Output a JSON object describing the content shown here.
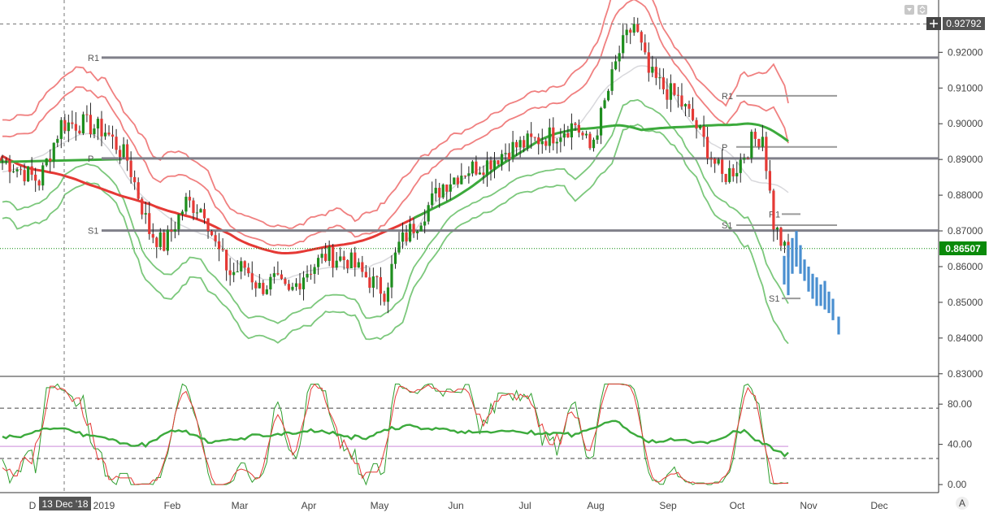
{
  "chart_data": [
    {
      "type": "candlestick",
      "symbol": "",
      "price_axis": {
        "ticks": [
          "0.92000",
          "0.91000",
          "0.90000",
          "0.89000",
          "0.88000",
          "0.87000",
          "0.86000",
          "0.85000",
          "0.84000",
          "0.83000"
        ],
        "range": [
          0.8295,
          0.9335
        ]
      },
      "time_axis": {
        "labels": [
          "D",
          "2019",
          "Feb",
          "Mar",
          "Apr",
          "May",
          "Jun",
          "Jul",
          "Aug",
          "Sep",
          "Oct",
          "Nov",
          "Dec"
        ],
        "crosshair_label": "13 Dec '18"
      },
      "last_price": "0.86507",
      "crosshair_price": "0.92792",
      "pivot_levels_long": [
        {
          "label": "R1",
          "value": 0.9185
        },
        {
          "label": "P",
          "value": 0.8903
        },
        {
          "label": "S1",
          "value": 0.8701
        }
      ],
      "pivot_levels_short": [
        {
          "label": "R1",
          "value": 0.9078
        },
        {
          "label": "P",
          "value": 0.8935
        },
        {
          "label": "R1",
          "value": 0.8747
        },
        {
          "label": "S1",
          "value": 0.8716
        },
        {
          "label": "S1",
          "value": 0.8511
        }
      ],
      "colors": {
        "up": "#1e8e1e",
        "down": "#e53935",
        "projection": "#4a8fd0",
        "last_price_tag": "#0a8a0a",
        "crosshair_tag": "#555555",
        "level_line": "#8a8a8a"
      }
    },
    {
      "type": "line",
      "panel": "oscillator",
      "y_axis": {
        "ticks": [
          "80.00",
          "40.00",
          "0.00"
        ],
        "range": [
          -8,
          106
        ]
      },
      "dashed_levels": [
        76.0,
        26.0
      ],
      "reference_level": 38.0,
      "colors": {
        "fast": "#2e9e2e",
        "slow": "#e53935",
        "thick_green": "#3caa3c",
        "thick_red": "#e53935",
        "reference": "#d5a0e0"
      }
    }
  ]
}
